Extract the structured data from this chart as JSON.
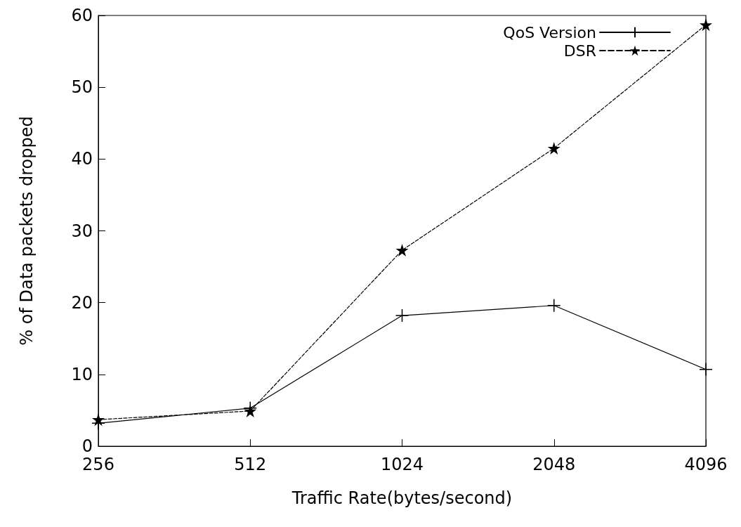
{
  "chart_data": {
    "type": "line",
    "xlabel": "Traffic Rate(bytes/second)",
    "ylabel": "% of Data packets dropped",
    "categories": [
      "256",
      "512",
      "1024",
      "2048",
      "4096"
    ],
    "series": [
      {
        "name": "QoS Version",
        "color": "#000000",
        "marker": "cross",
        "line_style": "solid",
        "values": [
          3.2,
          5.3,
          18.2,
          19.6,
          10.7
        ]
      },
      {
        "name": "DSR",
        "color": "#000000",
        "marker": "star",
        "line_style": "dashed",
        "values": [
          3.7,
          4.9,
          27.3,
          41.5,
          58.7
        ]
      }
    ],
    "ylim": [
      0,
      60
    ],
    "yticks": [
      0,
      10,
      20,
      30,
      40,
      50,
      60
    ],
    "grid": false,
    "legend": "top right"
  }
}
